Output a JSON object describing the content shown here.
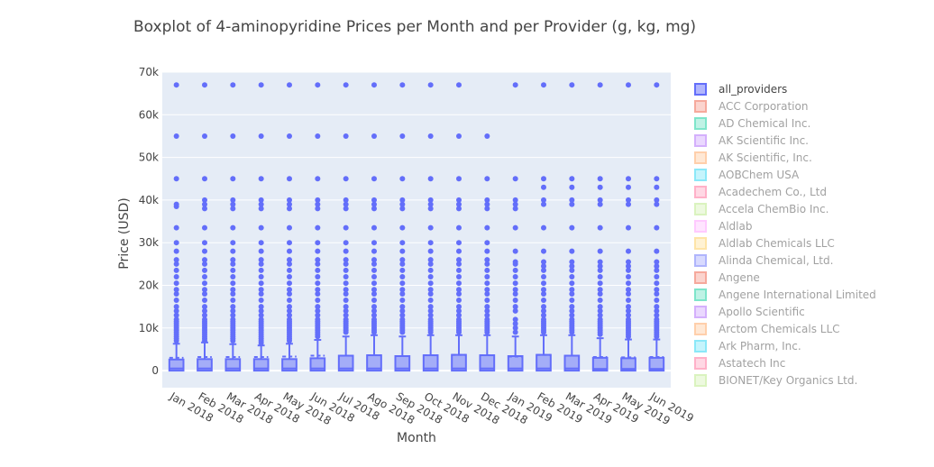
{
  "chart_data": {
    "type": "box",
    "title": "Boxplot of 4-aminopyridine Prices per Month and per Provider (g, kg, mg)",
    "xlabel": "Month",
    "ylabel": "Price (USD)",
    "ylim": [
      -4000,
      70000
    ],
    "y_ticks": [
      0,
      10000,
      20000,
      30000,
      40000,
      50000,
      60000,
      70000
    ],
    "y_tick_labels": [
      "0",
      "10k",
      "20k",
      "30k",
      "40k",
      "50k",
      "60k",
      "70k"
    ],
    "grid": true,
    "legend_position": "right",
    "categories": [
      "Jan 2018",
      "Feb 2018",
      "Mar 2018",
      "Apr 2018",
      "May 2018",
      "Jun 2018",
      "Jul 2018",
      "Ago 2018",
      "Sep 2018",
      "Oct 2018",
      "Nov 2018",
      "Dec 2018",
      "Jan 2019",
      "Feb 2019",
      "Mar 2019",
      "Apr 2019",
      "May 2019",
      "Jun 2019"
    ],
    "series": [
      {
        "name": "all_providers",
        "color": "#636efa",
        "boxes": [
          {
            "q1": 0,
            "median": 500,
            "q3": 2600,
            "mean": 3000,
            "upper_fence": 6300,
            "outliers": [
              7000,
              7500,
              8000,
              8500,
              9000,
              9500,
              10000,
              10500,
              11000,
              11500,
              12000,
              13000,
              14000,
              15000,
              16500,
              18000,
              19000,
              20500,
              22000,
              23500,
              25000,
              26000,
              28000,
              30000,
              33500,
              38500,
              39000,
              45000,
              55000,
              67000
            ]
          },
          {
            "q1": 0,
            "median": 500,
            "q3": 2700,
            "mean": 3200,
            "upper_fence": 6600,
            "outliers": [
              7000,
              7500,
              8000,
              8500,
              9000,
              9500,
              10000,
              10500,
              11000,
              11500,
              12000,
              13000,
              14000,
              15000,
              16500,
              18000,
              19000,
              20500,
              22000,
              23500,
              25000,
              26000,
              28000,
              30000,
              33500,
              38000,
              39000,
              40000,
              45000,
              55000,
              67000
            ]
          },
          {
            "q1": 0,
            "median": 500,
            "q3": 2700,
            "mean": 3200,
            "upper_fence": 6200,
            "outliers": [
              7000,
              7500,
              8000,
              8500,
              9000,
              9500,
              10000,
              10500,
              11000,
              11500,
              12000,
              13000,
              14000,
              15000,
              16500,
              18000,
              19000,
              20500,
              22000,
              23500,
              25000,
              26000,
              28000,
              30000,
              33500,
              38000,
              39000,
              40000,
              45000,
              55000,
              67000
            ]
          },
          {
            "q1": 0,
            "median": 500,
            "q3": 2700,
            "mean": 3200,
            "upper_fence": 5900,
            "outliers": [
              6500,
              7000,
              7500,
              8000,
              8500,
              9000,
              9500,
              10000,
              10500,
              11000,
              11500,
              12000,
              13000,
              14000,
              15000,
              16500,
              18000,
              19000,
              20500,
              22000,
              23500,
              25000,
              26000,
              28000,
              30000,
              33500,
              38000,
              39000,
              40000,
              45000,
              55000,
              67000
            ]
          },
          {
            "q1": 0,
            "median": 500,
            "q3": 2700,
            "mean": 3300,
            "upper_fence": 6300,
            "outliers": [
              7000,
              7500,
              8000,
              8500,
              9000,
              9500,
              10000,
              10500,
              11000,
              11500,
              12000,
              13000,
              14000,
              15000,
              16500,
              18000,
              19000,
              20500,
              22000,
              23500,
              25000,
              26000,
              28000,
              30000,
              33500,
              38000,
              39000,
              40000,
              45000,
              55000,
              67000
            ]
          },
          {
            "q1": 0,
            "median": 500,
            "q3": 2900,
            "mean": 3500,
            "upper_fence": 7200,
            "outliers": [
              8000,
              8500,
              9000,
              9500,
              10000,
              10500,
              11000,
              11500,
              12000,
              13000,
              14000,
              15000,
              16500,
              18000,
              19000,
              20500,
              22000,
              23500,
              25000,
              26000,
              28000,
              30000,
              33500,
              38000,
              39000,
              40000,
              45000,
              55000,
              67000
            ]
          },
          {
            "q1": 0,
            "median": 500,
            "q3": 3500,
            "mean": 3500,
            "upper_fence": 8000,
            "outliers": [
              9000,
              9500,
              10000,
              10500,
              11000,
              11500,
              12000,
              13000,
              14000,
              15000,
              16500,
              18000,
              19000,
              20500,
              22000,
              23500,
              25000,
              26000,
              28000,
              30000,
              33500,
              38000,
              39000,
              40000,
              45000,
              55000,
              67000
            ]
          },
          {
            "q1": 0,
            "median": 500,
            "q3": 3600,
            "mean": 3600,
            "upper_fence": 8300,
            "outliers": [
              9000,
              9500,
              10000,
              10500,
              11000,
              11500,
              12000,
              13000,
              14000,
              15000,
              16500,
              18000,
              19000,
              20500,
              22000,
              23500,
              25000,
              26000,
              28000,
              30000,
              33500,
              38000,
              39000,
              40000,
              45000,
              55000,
              67000
            ]
          },
          {
            "q1": 0,
            "median": 500,
            "q3": 3400,
            "mean": 3400,
            "upper_fence": 8000,
            "outliers": [
              9000,
              9500,
              10000,
              10500,
              11000,
              11500,
              12000,
              13000,
              14000,
              15000,
              16500,
              18000,
              19000,
              20500,
              22000,
              23500,
              25000,
              26000,
              28000,
              30000,
              33500,
              38000,
              39000,
              40000,
              45000,
              55000,
              67000
            ]
          },
          {
            "q1": 0,
            "median": 500,
            "q3": 3600,
            "mean": 3600,
            "upper_fence": 8300,
            "outliers": [
              9000,
              9500,
              10000,
              10500,
              11000,
              11500,
              12000,
              13000,
              14000,
              15000,
              16500,
              18000,
              19000,
              20500,
              22000,
              23500,
              25000,
              26000,
              28000,
              30000,
              33500,
              38000,
              39000,
              40000,
              45000,
              55000,
              67000
            ]
          },
          {
            "q1": 0,
            "median": 500,
            "q3": 3700,
            "mean": 3700,
            "upper_fence": 8300,
            "outliers": [
              9000,
              9500,
              10000,
              10500,
              11000,
              11500,
              12000,
              13000,
              14000,
              15000,
              16500,
              18000,
              19000,
              20500,
              22000,
              23500,
              25000,
              26000,
              28000,
              30000,
              33500,
              38000,
              39000,
              40000,
              45000,
              55000,
              67000
            ]
          },
          {
            "q1": 0,
            "median": 500,
            "q3": 3600,
            "mean": 3600,
            "upper_fence": 8300,
            "outliers": [
              9000,
              9500,
              10000,
              10500,
              11000,
              11500,
              12000,
              13000,
              14000,
              15000,
              16500,
              18000,
              19000,
              20500,
              22000,
              23500,
              25000,
              26000,
              28000,
              30000,
              33500,
              38000,
              39000,
              40000,
              45000,
              55000
            ]
          },
          {
            "q1": 0,
            "median": 500,
            "q3": 3400,
            "mean": 3300,
            "upper_fence": 8000,
            "outliers": [
              9000,
              10000,
              11000,
              12000,
              14000,
              15000,
              16500,
              18000,
              19000,
              20500,
              22000,
              23500,
              25000,
              25500,
              28000,
              33500,
              38000,
              39000,
              40000,
              45000,
              67000
            ]
          },
          {
            "q1": 0,
            "median": 500,
            "q3": 3700,
            "mean": 3700,
            "upper_fence": 8300,
            "outliers": [
              9000,
              9500,
              10000,
              10500,
              11000,
              11500,
              12000,
              13000,
              14000,
              15000,
              16500,
              18000,
              19000,
              20500,
              22000,
              23500,
              24500,
              25500,
              28000,
              33500,
              39000,
              40000,
              43000,
              45000,
              67000
            ]
          },
          {
            "q1": 0,
            "median": 500,
            "q3": 3500,
            "mean": 3500,
            "upper_fence": 8300,
            "outliers": [
              9000,
              9500,
              10000,
              10500,
              11000,
              11500,
              12000,
              13000,
              14000,
              15000,
              16500,
              18000,
              19000,
              20500,
              22000,
              23500,
              24500,
              25500,
              28000,
              33500,
              39000,
              40000,
              43000,
              45000,
              67000
            ]
          },
          {
            "q1": 0,
            "median": 400,
            "q3": 3000,
            "mean": 3200,
            "upper_fence": 7600,
            "outliers": [
              8500,
              9000,
              9500,
              10000,
              10500,
              11000,
              11500,
              12000,
              13000,
              14000,
              15000,
              16500,
              18000,
              19000,
              20500,
              22000,
              23500,
              24500,
              25500,
              28000,
              33500,
              39000,
              40000,
              43000,
              45000,
              67000
            ]
          },
          {
            "q1": 0,
            "median": 400,
            "q3": 2900,
            "mean": 3100,
            "upper_fence": 7300,
            "outliers": [
              8000,
              8500,
              9000,
              9500,
              10000,
              10500,
              11000,
              11500,
              12000,
              13000,
              14000,
              15000,
              16500,
              18000,
              19000,
              20500,
              22000,
              23500,
              24500,
              25500,
              28000,
              33500,
              39000,
              40000,
              43000,
              45000,
              67000
            ]
          },
          {
            "q1": 0,
            "median": 400,
            "q3": 3000,
            "mean": 3200,
            "upper_fence": 7300,
            "outliers": [
              8000,
              8500,
              9000,
              9500,
              10000,
              10500,
              11000,
              11500,
              12000,
              13000,
              14000,
              15000,
              16500,
              18000,
              19000,
              20500,
              22000,
              23500,
              24500,
              25500,
              28000,
              33500,
              39000,
              40000,
              43000,
              45000,
              67000
            ]
          }
        ]
      },
      {
        "name": "ACC Corporation",
        "color": "#ef553b",
        "visible": "legendonly"
      },
      {
        "name": "AD Chemical Inc.",
        "color": "#00cc96",
        "visible": "legendonly"
      },
      {
        "name": "AK Scientific Inc.",
        "color": "#ab63fa",
        "visible": "legendonly"
      },
      {
        "name": "AK Scientific, Inc.",
        "color": "#ffa15a",
        "visible": "legendonly"
      },
      {
        "name": "AOBChem USA",
        "color": "#19d3f3",
        "visible": "legendonly"
      },
      {
        "name": "Acadechem Co., Ltd",
        "color": "#ff6692",
        "visible": "legendonly"
      },
      {
        "name": "Accela ChemBio Inc.",
        "color": "#b6e880",
        "visible": "legendonly"
      },
      {
        "name": "Aldlab",
        "color": "#ff97ff",
        "visible": "legendonly"
      },
      {
        "name": "Aldlab Chemicals LLC",
        "color": "#fecb52",
        "visible": "legendonly"
      },
      {
        "name": "Alinda Chemical, Ltd.",
        "color": "#636efa",
        "visible": "legendonly"
      },
      {
        "name": "Angene",
        "color": "#ef553b",
        "visible": "legendonly"
      },
      {
        "name": "Angene International Limited",
        "color": "#00cc96",
        "visible": "legendonly"
      },
      {
        "name": "Apollo Scientific",
        "color": "#ab63fa",
        "visible": "legendonly"
      },
      {
        "name": "Arctom Chemicals LLC",
        "color": "#ffa15a",
        "visible": "legendonly"
      },
      {
        "name": "Ark Pharm, Inc.",
        "color": "#19d3f3",
        "visible": "legendonly"
      },
      {
        "name": "Astatech Inc",
        "color": "#ff6692",
        "visible": "legendonly"
      },
      {
        "name": "BIONET/Key Organics Ltd.",
        "color": "#b6e880",
        "visible": "legendonly"
      }
    ]
  }
}
